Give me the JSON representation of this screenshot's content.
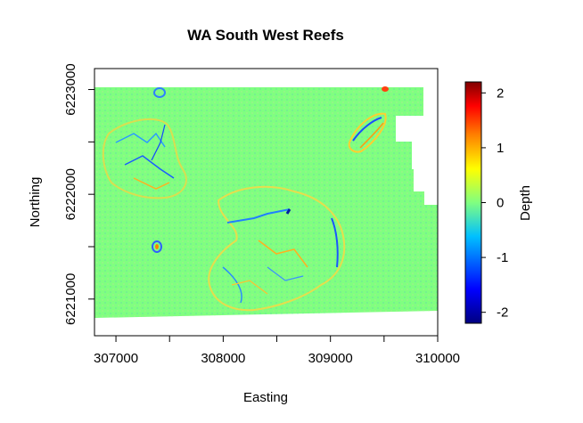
{
  "chart_data": {
    "type": "heatmap",
    "title": "WA South West Reefs",
    "xlabel": "Easting",
    "ylabel": "Northing",
    "xlim": [
      306800,
      310000
    ],
    "ylim": [
      6220650,
      6223200
    ],
    "x_ticks": [
      307000,
      308000,
      309000,
      310000
    ],
    "x_tick_labels": [
      "307000",
      "308000",
      "309000",
      "310000"
    ],
    "y_ticks": [
      6221000,
      6222000,
      6223000
    ],
    "y_tick_labels": [
      "6221000",
      "6222000",
      "6223000"
    ],
    "colorbar": {
      "label": "Depth",
      "min": -2.2,
      "max": 2.2,
      "ticks": [
        -2,
        -1,
        0,
        1,
        2
      ],
      "tick_labels": [
        "-2",
        "-1",
        "0",
        "1",
        "2"
      ],
      "colormap": [
        "#000080",
        "#0000ff",
        "#00c0ff",
        "#80ff80",
        "#ffff00",
        "#ff8000",
        "#ff0000",
        "#800000"
      ]
    },
    "background_value": 0,
    "background_color": "#80ff80",
    "grid": false
  }
}
